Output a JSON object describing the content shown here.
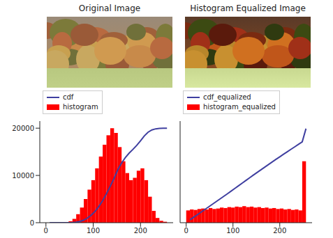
{
  "images": [
    {
      "title": "Original Image"
    },
    {
      "title": "Histogram Equalized Image"
    }
  ],
  "chart_data": [
    {
      "type": "histogram",
      "legend": "upper left",
      "grid": false,
      "xlim": [
        -13,
        269
      ],
      "xticks": [
        0,
        100,
        200
      ],
      "ylim": [
        0,
        21500
      ],
      "yticks": [
        0,
        10000,
        20000
      ],
      "bins": [
        0,
        8,
        16,
        24,
        32,
        40,
        48,
        56,
        64,
        72,
        80,
        88,
        96,
        104,
        112,
        120,
        128,
        136,
        144,
        152,
        160,
        168,
        176,
        184,
        192,
        200,
        208,
        216,
        224,
        232,
        240,
        248,
        256
      ],
      "series": [
        {
          "name": "cdf",
          "type": "line",
          "color": "#3f3fa0",
          "x": [
            8,
            16,
            24,
            32,
            40,
            48,
            56,
            64,
            72,
            80,
            88,
            96,
            104,
            112,
            120,
            128,
            136,
            144,
            152,
            160,
            168,
            176,
            184,
            192,
            200,
            208,
            216,
            224,
            232,
            240,
            248,
            256
          ],
          "values": [
            0,
            0,
            0,
            0,
            0,
            9,
            35,
            106,
            266,
            549,
            992,
            1612,
            2409,
            3428,
            4668,
            6129,
            7717,
            9375,
            11222,
            12638,
            13789,
            14719,
            15516,
            16358,
            17332,
            18351,
            19148,
            19635,
            19857,
            19946,
            19981,
            20000
          ]
        },
        {
          "name": "histogram",
          "type": "bar",
          "color": "#ff0000",
          "values": [
            0,
            0,
            0,
            0,
            0,
            100,
            300,
            800,
            1800,
            3200,
            5000,
            7000,
            9000,
            11500,
            14000,
            16500,
            18500,
            20000,
            19000,
            16000,
            13000,
            10500,
            9000,
            9500,
            11000,
            11500,
            9000,
            5500,
            2500,
            1000,
            400,
            200
          ]
        }
      ]
    },
    {
      "type": "histogram",
      "legend": "upper left",
      "grid": false,
      "tick_labels": "x",
      "xlim": [
        -13,
        269
      ],
      "xticks": [
        0,
        100,
        200
      ],
      "ylim": [
        0,
        21500
      ],
      "yticks": [
        0,
        10000,
        20000
      ],
      "bins": [
        0,
        8,
        16,
        24,
        32,
        40,
        48,
        56,
        64,
        72,
        80,
        88,
        96,
        104,
        112,
        120,
        128,
        136,
        144,
        152,
        160,
        168,
        176,
        184,
        192,
        200,
        208,
        216,
        224,
        232,
        240,
        248,
        256
      ],
      "series": [
        {
          "name": "cdf_equalized",
          "type": "line",
          "color": "#3f3fa0",
          "x": [
            8,
            16,
            24,
            32,
            40,
            48,
            56,
            64,
            72,
            80,
            88,
            96,
            104,
            112,
            120,
            128,
            136,
            144,
            152,
            160,
            168,
            176,
            184,
            192,
            200,
            208,
            216,
            224,
            232,
            240,
            248,
            256
          ],
          "values": [
            600,
            1150,
            1700,
            2250,
            2800,
            3350,
            3900,
            4450,
            5000,
            5560,
            6120,
            6680,
            7250,
            7820,
            8390,
            8970,
            9530,
            10100,
            10650,
            11210,
            11760,
            12320,
            12860,
            13410,
            13940,
            14480,
            15000,
            15530,
            16050,
            16580,
            17100,
            19900
          ]
        },
        {
          "name": "histogram_equalized",
          "type": "bar",
          "color": "#ff0000",
          "values": [
            2600,
            2800,
            2700,
            2900,
            3000,
            2800,
            3100,
            2900,
            3000,
            3200,
            3100,
            3300,
            3200,
            3400,
            3300,
            3500,
            3300,
            3400,
            3200,
            3300,
            3100,
            3200,
            3000,
            3100,
            2900,
            3000,
            2800,
            2900,
            2700,
            2800,
            2600,
            13000
          ]
        }
      ]
    }
  ]
}
